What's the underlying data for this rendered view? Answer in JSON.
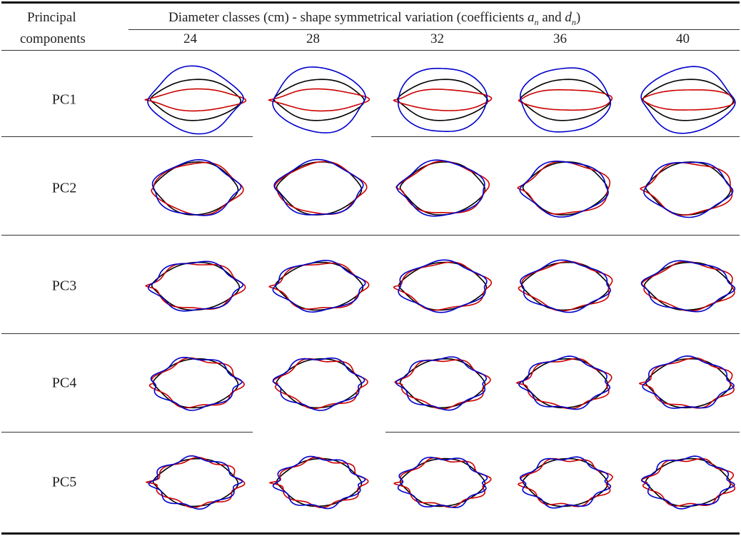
{
  "header": {
    "stub_line1": "Principal",
    "stub_line2": "components",
    "group_title_prefix": "Diameter classes (cm)  - shape symmetrical variation (coefficients ",
    "coef_a": "a",
    "coef_a_sub": "n",
    "and_text": " and  ",
    "coef_d": "d",
    "coef_d_sub": "n",
    "close_paren": ")",
    "diameter_classes": [
      "24",
      "28",
      "32",
      "36",
      "40"
    ]
  },
  "rows": [
    {
      "label": "PC1"
    },
    {
      "label": "PC2"
    },
    {
      "label": "PC3"
    },
    {
      "label": "PC4"
    },
    {
      "label": "PC5"
    }
  ],
  "colors": {
    "mean_shape": "#000000",
    "variation_plus": "#cc0000",
    "variation_minus": "#0000cc"
  }
}
